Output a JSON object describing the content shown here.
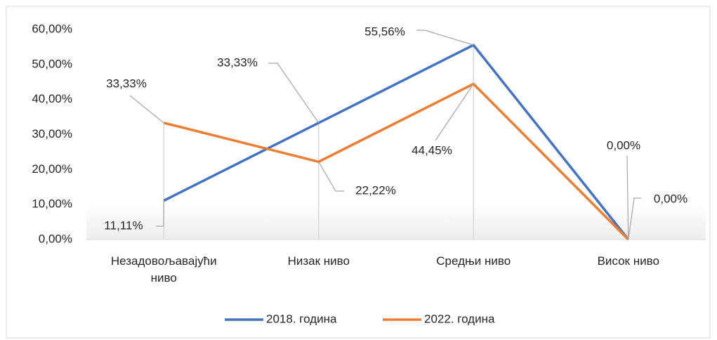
{
  "chart_data": {
    "type": "line",
    "categories": [
      "Незадовољавајући ниво",
      "Низак ниво",
      "Средњи ниво",
      "Висок ниво"
    ],
    "series": [
      {
        "name": "2018. година",
        "color": "#4472c4",
        "values": [
          11.11,
          33.33,
          55.56,
          0
        ],
        "value_labels": [
          "11,11%",
          "33,33%",
          "55,56%",
          "0,00%"
        ]
      },
      {
        "name": "2022. година",
        "color": "#ed7d31",
        "values": [
          33.33,
          22.22,
          44.45,
          0
        ],
        "value_labels": [
          "33,33%",
          "22,22%",
          "44,45%",
          "0,00%"
        ]
      }
    ],
    "ylim": [
      0,
      60
    ],
    "yticks": [
      {
        "value": 0,
        "label": "0,00%"
      },
      {
        "value": 10,
        "label": "10,00%"
      },
      {
        "value": 20,
        "label": "20,00%"
      },
      {
        "value": 30,
        "label": "30,00%"
      },
      {
        "value": 40,
        "label": "40,00%"
      },
      {
        "value": 50,
        "label": "50,00%"
      },
      {
        "value": 60,
        "label": "60,00%"
      }
    ],
    "legend": "bottom"
  }
}
